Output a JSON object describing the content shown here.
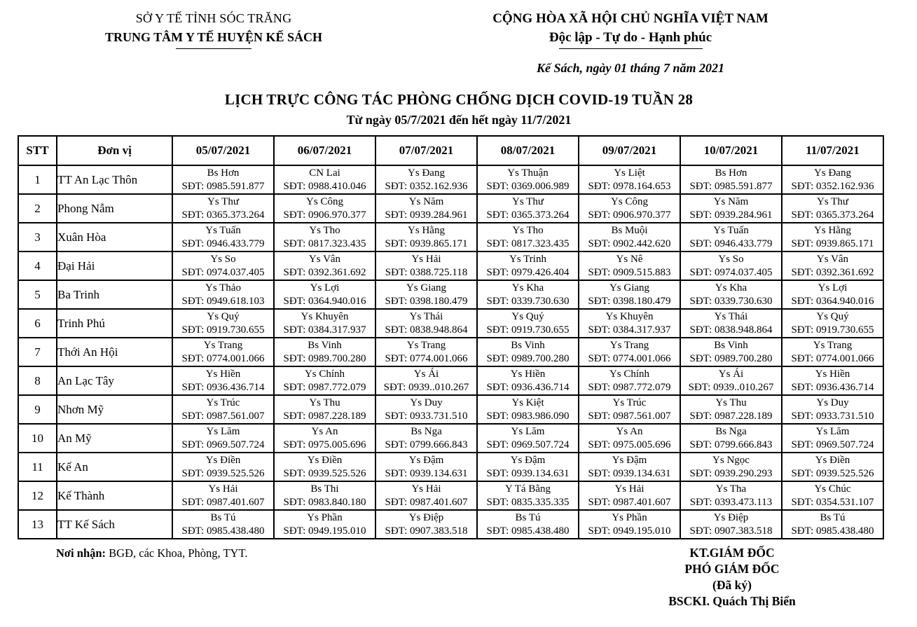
{
  "header": {
    "left": {
      "line1": "SỞ Y TẾ TỈNH SÓC TRĂNG",
      "line2": "TRUNG TÂM Y TẾ HUYỆN KẾ SÁCH"
    },
    "right": {
      "line1": "CỘNG HÒA XÃ HỘI CHỦ NGHĨA VIỆT NAM",
      "line2": "Độc lập - Tự do - Hạnh phúc"
    },
    "dateline": "Kế Sách, ngày 01 tháng 7 năm 2021"
  },
  "title": {
    "main": "LỊCH TRỰC CÔNG TÁC PHÒNG CHỐNG DỊCH COVID-19 TUẦN 28",
    "sub": "Từ ngày 05/7/2021 đến hết ngày 11/7/2021"
  },
  "table": {
    "columns": [
      "STT",
      "Đơn vị",
      "05/07/2021",
      "06/07/2021",
      "07/07/2021",
      "08/07/2021",
      "09/07/2021",
      "10/07/2021",
      "11/07/2021"
    ],
    "rows": [
      {
        "stt": "1",
        "unit": "TT An Lạc Thôn",
        "shifts": [
          {
            "name": "Bs Hơn",
            "phone": "SĐT: 0985.591.877"
          },
          {
            "name": "CN Lai",
            "phone": "SĐT: 0988.410.046"
          },
          {
            "name": "Ys Đang",
            "phone": "SĐT: 0352.162.936"
          },
          {
            "name": "Ys Thuận",
            "phone": "SĐT: 0369.006.989"
          },
          {
            "name": "Ys Liệt",
            "phone": "SĐT: 0978.164.653"
          },
          {
            "name": "Bs Hơn",
            "phone": "SĐT: 0985.591.877"
          },
          {
            "name": "Ys Đang",
            "phone": "SĐT: 0352.162.936"
          }
        ]
      },
      {
        "stt": "2",
        "unit": "Phong Nẫm",
        "shifts": [
          {
            "name": "Ys Thư",
            "phone": "SĐT: 0365.373.264"
          },
          {
            "name": "Ys Công",
            "phone": "SĐT: 0906.970.377"
          },
          {
            "name": "Ys Năm",
            "phone": "SĐT: 0939.284.961"
          },
          {
            "name": "Ys Thư",
            "phone": "SĐT: 0365.373.264"
          },
          {
            "name": "Ys Công",
            "phone": "SĐT: 0906.970.377"
          },
          {
            "name": "Ys Năm",
            "phone": "SĐT: 0939.284.961"
          },
          {
            "name": "Ys Thư",
            "phone": "SĐT: 0365.373.264"
          }
        ]
      },
      {
        "stt": "3",
        "unit": "Xuân Hòa",
        "shifts": [
          {
            "name": "Ys Tuấn",
            "phone": "SĐT: 0946.433.779"
          },
          {
            "name": "Ys Tho",
            "phone": "SĐT: 0817.323.435"
          },
          {
            "name": "Ys Hằng",
            "phone": "SĐT: 0939.865.171"
          },
          {
            "name": "Ys Tho",
            "phone": "SĐT: 0817.323.435"
          },
          {
            "name": "Bs Muội",
            "phone": "SĐT: 0902.442.620"
          },
          {
            "name": "Ys Tuấn",
            "phone": "SĐT: 0946.433.779"
          },
          {
            "name": "Ys Hằng",
            "phone": "SĐT: 0939.865.171"
          }
        ]
      },
      {
        "stt": "4",
        "unit": "Đại Hải",
        "shifts": [
          {
            "name": "Ys So",
            "phone": "SĐT: 0974.037.405"
          },
          {
            "name": "Ys Vân",
            "phone": "SĐT: 0392.361.692"
          },
          {
            "name": "Ys Hải",
            "phone": "SĐT: 0388.725.118"
          },
          {
            "name": "Ys Trinh",
            "phone": "SĐT: 0979.426.404"
          },
          {
            "name": "Ys Nê",
            "phone": "SĐT: 0909.515.883"
          },
          {
            "name": "Ys So",
            "phone": "SĐT: 0974.037.405"
          },
          {
            "name": "Ys Vân",
            "phone": "SĐT: 0392.361.692"
          }
        ]
      },
      {
        "stt": "5",
        "unit": "Ba Trinh",
        "shifts": [
          {
            "name": "Ys Thảo",
            "phone": "SĐT: 0949.618.103"
          },
          {
            "name": "Ys Lợi",
            "phone": "SĐT: 0364.940.016"
          },
          {
            "name": "Ys Giang",
            "phone": "SĐT: 0398.180.479"
          },
          {
            "name": "Ys Kha",
            "phone": "SĐT: 0339.730.630"
          },
          {
            "name": "Ys Giang",
            "phone": "SĐT: 0398.180.479"
          },
          {
            "name": "Ys Kha",
            "phone": "SĐT: 0339.730.630"
          },
          {
            "name": "Ys Lợi",
            "phone": "SĐT: 0364.940.016"
          }
        ]
      },
      {
        "stt": "6",
        "unit": "Trinh Phú",
        "shifts": [
          {
            "name": "Ys Quý",
            "phone": "SĐT: 0919.730.655"
          },
          {
            "name": "Ys Khuyên",
            "phone": "SĐT: 0384.317.937"
          },
          {
            "name": "Ys Thái",
            "phone": "SĐT: 0838.948.864"
          },
          {
            "name": "Ys Quý",
            "phone": "SĐT: 0919.730.655"
          },
          {
            "name": "Ys Khuyên",
            "phone": "SĐT: 0384.317.937"
          },
          {
            "name": "Ys Thái",
            "phone": "SĐT: 0838.948.864"
          },
          {
            "name": "Ys Quý",
            "phone": "SĐT: 0919.730.655"
          }
        ]
      },
      {
        "stt": "7",
        "unit": "Thới An Hội",
        "shifts": [
          {
            "name": "Ys Trang",
            "phone": "SĐT: 0774.001.066"
          },
          {
            "name": "Bs Vinh",
            "phone": "SĐT: 0989.700.280"
          },
          {
            "name": "Ys Trang",
            "phone": "SĐT: 0774.001.066"
          },
          {
            "name": "Bs Vinh",
            "phone": "SĐT: 0989.700.280"
          },
          {
            "name": "Ys Trang",
            "phone": "SĐT: 0774.001.066"
          },
          {
            "name": "Bs Vinh",
            "phone": "SĐT: 0989.700.280"
          },
          {
            "name": "Ys Trang",
            "phone": "SĐT: 0774.001.066"
          }
        ]
      },
      {
        "stt": "8",
        "unit": "An Lạc Tây",
        "shifts": [
          {
            "name": "Ys Hiền",
            "phone": "SĐT: 0936.436.714"
          },
          {
            "name": "Ys Chính",
            "phone": "SĐT: 0987.772.079"
          },
          {
            "name": "Ys Ái",
            "phone": "SĐT: 0939..010.267"
          },
          {
            "name": "Ys Hiền",
            "phone": "SĐT: 0936.436.714"
          },
          {
            "name": "Ys Chính",
            "phone": "SĐT: 0987.772.079"
          },
          {
            "name": "Ys Ái",
            "phone": "SĐT: 0939..010.267"
          },
          {
            "name": "Ys Hiền",
            "phone": "SĐT: 0936.436.714"
          }
        ]
      },
      {
        "stt": "9",
        "unit": "Nhơn Mỹ",
        "shifts": [
          {
            "name": "Ys Trúc",
            "phone": "SĐT: 0987.561.007"
          },
          {
            "name": "Ys Thu",
            "phone": "SĐT: 0987.228.189"
          },
          {
            "name": "Ys Duy",
            "phone": "SĐT: 0933.731.510"
          },
          {
            "name": "Ys Kiệt",
            "phone": "SĐT: 0983.986.090"
          },
          {
            "name": "Ys Trúc",
            "phone": "SĐT: 0987.561.007"
          },
          {
            "name": "Ys Thu",
            "phone": "SĐT: 0987.228.189"
          },
          {
            "name": "Ys Duy",
            "phone": "SĐT: 0933.731.510"
          }
        ]
      },
      {
        "stt": "10",
        "unit": "An Mỹ",
        "shifts": [
          {
            "name": "Ys Lăm",
            "phone": "SĐT: 0969.507.724"
          },
          {
            "name": "Ys An",
            "phone": "SĐT: 0975.005.696"
          },
          {
            "name": "Bs Nga",
            "phone": "SĐT: 0799.666.843"
          },
          {
            "name": "Ys Lăm",
            "phone": "SĐT: 0969.507.724"
          },
          {
            "name": "Ys An",
            "phone": "SĐT: 0975.005.696"
          },
          {
            "name": "Bs Nga",
            "phone": "SĐT: 0799.666.843"
          },
          {
            "name": "Ys Lăm",
            "phone": "SĐT: 0969.507.724"
          }
        ]
      },
      {
        "stt": "11",
        "unit": "Kế An",
        "shifts": [
          {
            "name": "Ys Điền",
            "phone": "SĐT: 0939.525.526"
          },
          {
            "name": "Ys Điền",
            "phone": "SĐT: 0939.525.526"
          },
          {
            "name": "Ys Đậm",
            "phone": "SĐT: 0939.134.631"
          },
          {
            "name": "Ys Đậm",
            "phone": "SĐT: 0939.134.631"
          },
          {
            "name": "Ys Đậm",
            "phone": "SĐT: 0939.134.631"
          },
          {
            "name": "Ys Ngọc",
            "phone": "SĐT: 0939.290.293"
          },
          {
            "name": "Ys Điền",
            "phone": "SĐT: 0939.525.526"
          }
        ]
      },
      {
        "stt": "12",
        "unit": "Kế Thành",
        "shifts": [
          {
            "name": "Ys Hải",
            "phone": "SĐT: 0987.401.607"
          },
          {
            "name": "Bs Thi",
            "phone": "SĐT: 0983.840.180"
          },
          {
            "name": "Ys Hải",
            "phone": "SĐT: 0987.401.607"
          },
          {
            "name": "Y Tá Bằng",
            "phone": "SĐT: 0835.335.335"
          },
          {
            "name": "Ys Hải",
            "phone": "SĐT: 0987.401.607"
          },
          {
            "name": "Ys Tha",
            "phone": "SĐT: 0393.473.113"
          },
          {
            "name": "Ys Chúc",
            "phone": "SĐT: 0354.531.107"
          }
        ]
      },
      {
        "stt": "13",
        "unit": "TT Kế Sách",
        "shifts": [
          {
            "name": "Bs Tú",
            "phone": "SĐT: 0985.438.480"
          },
          {
            "name": "Ys Phần",
            "phone": "SĐT: 0949.195.010"
          },
          {
            "name": "Ys Điệp",
            "phone": "SĐT: 0907.383.518"
          },
          {
            "name": "Bs Tú",
            "phone": "SĐT: 0985.438.480"
          },
          {
            "name": "Ys Phần",
            "phone": "SĐT: 0949.195.010"
          },
          {
            "name": "Ys Điệp",
            "phone": "SĐT: 0907.383.518"
          },
          {
            "name": "Bs Tú",
            "phone": "SĐT: 0985.438.480"
          }
        ]
      }
    ]
  },
  "footer": {
    "recipients_label": "Nơi nhận:",
    "recipients_text": " BGĐ, các Khoa, Phòng, TYT.",
    "signature": {
      "line1": "KT.GIÁM ĐỐC",
      "line2": "PHÓ GIÁM ĐỐC",
      "line3": "(Đã ký)",
      "line4": "BSCKI. Quách Thị Biển"
    }
  }
}
